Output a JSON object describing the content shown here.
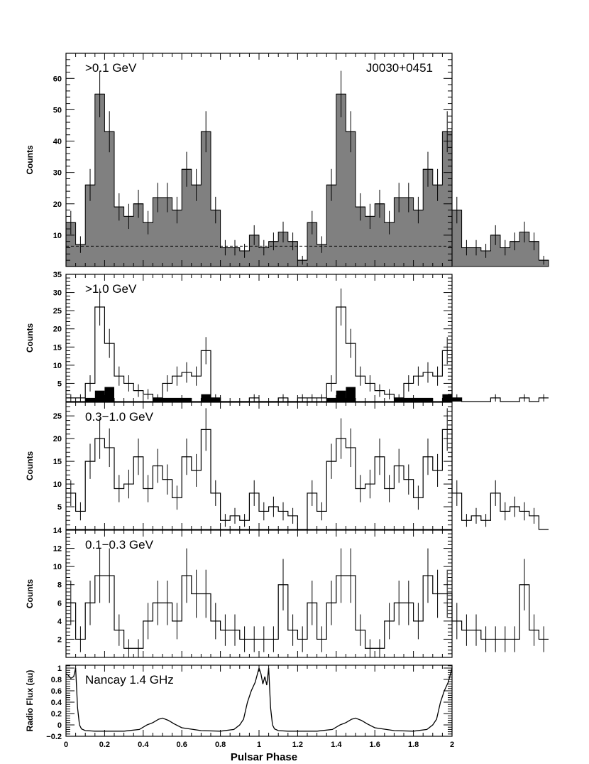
{
  "chart_data": [
    {
      "type": "bar",
      "title": ">0.1 GeV",
      "source_label": "J0030+0451",
      "ylabel": "Counts",
      "ylim": [
        0,
        68
      ],
      "yticks": [
        10,
        20,
        30,
        40,
        50,
        60
      ],
      "xlim": [
        0,
        2
      ],
      "bin_width": 0.05,
      "values": [
        14,
        7,
        26,
        55,
        43,
        19,
        16,
        20,
        14,
        22,
        22,
        18,
        31,
        26,
        43,
        18,
        6,
        6,
        5,
        10,
        6,
        8,
        11,
        8,
        2,
        14,
        7,
        26,
        55,
        43,
        19,
        16,
        20,
        14,
        22,
        22,
        18,
        31,
        26,
        43,
        18,
        6,
        6,
        5,
        10,
        6,
        8,
        11,
        8,
        2
      ],
      "background_level": 6.5,
      "fill_color": "#808080",
      "background_line": "dashed"
    },
    {
      "type": "bar",
      "title": ">1.0 GeV",
      "ylabel": "Counts",
      "ylim": [
        0,
        35
      ],
      "yticks": [
        5,
        10,
        15,
        20,
        25,
        30,
        35
      ],
      "xlim": [
        0,
        2
      ],
      "bin_width": 0.05,
      "series": [
        {
          "values": [
            1,
            1,
            5,
            26,
            16,
            7,
            5,
            3,
            2,
            1,
            5,
            7,
            8,
            7,
            14,
            1,
            0,
            0,
            0,
            1,
            0,
            0,
            1,
            0,
            1,
            1,
            1,
            5,
            26,
            16,
            7,
            5,
            3,
            2,
            1,
            5,
            7,
            8,
            7,
            14,
            1,
            0,
            0,
            0,
            1,
            0,
            0,
            1,
            0,
            1
          ],
          "style": "outline"
        },
        {
          "values": [
            0,
            0,
            1,
            3,
            4,
            0,
            0,
            0,
            0,
            1,
            1,
            1,
            1,
            0,
            2,
            1,
            0,
            0,
            0,
            0,
            0,
            0,
            0,
            0,
            0,
            0,
            0,
            1,
            3,
            4,
            0,
            0,
            0,
            0,
            1,
            1,
            1,
            1,
            0,
            2,
            1,
            0,
            0,
            0,
            0,
            0,
            0,
            0,
            0,
            0
          ],
          "style": "filled-black"
        }
      ]
    },
    {
      "type": "bar",
      "title": "0.3−1.0 GeV",
      "ylabel": "Counts",
      "ylim": [
        0,
        28
      ],
      "yticks": [
        5,
        10,
        15,
        20,
        25
      ],
      "xlim": [
        0,
        2
      ],
      "bin_width": 0.05,
      "values": [
        8,
        4,
        15,
        20,
        18,
        9,
        10,
        16,
        9,
        14,
        11,
        7,
        16,
        13,
        22,
        8,
        2,
        3,
        2,
        8,
        4,
        5,
        4,
        3,
        0,
        8,
        4,
        15,
        20,
        18,
        9,
        10,
        16,
        9,
        14,
        11,
        7,
        16,
        13,
        22,
        8,
        2,
        3,
        2,
        8,
        4,
        5,
        4,
        3,
        0
      ]
    },
    {
      "type": "bar",
      "title": "0.1−0.3 GeV",
      "ylabel": "Counts",
      "ylim": [
        0,
        14
      ],
      "yticks": [
        2,
        4,
        6,
        8,
        10,
        12,
        14
      ],
      "xlim": [
        0,
        2
      ],
      "bin_width": 0.05,
      "values": [
        6,
        2,
        6,
        9,
        9,
        3,
        1,
        1,
        4,
        6,
        6,
        4,
        9,
        7,
        7,
        4,
        3,
        3,
        2,
        2,
        2,
        2,
        8,
        3,
        2,
        6,
        2,
        6,
        9,
        9,
        3,
        1,
        1,
        4,
        6,
        6,
        4,
        9,
        7,
        7,
        4,
        3,
        3,
        2,
        2,
        2,
        2,
        8,
        3,
        2
      ]
    },
    {
      "type": "line",
      "title": "Nancay 1.4 GHz",
      "ylabel": "Radio Flux (au)",
      "xlabel": "Pulsar Phase",
      "ylim": [
        -0.2,
        1.05
      ],
      "yticks": [
        -0.2,
        0,
        0.2,
        0.4,
        0.6,
        0.8,
        1
      ],
      "ytick_labels": [
        "−0.2",
        "0",
        "0.2",
        "0.4",
        "0.6",
        "0.8",
        "1"
      ],
      "xlim": [
        0,
        2
      ],
      "xticks": [
        0,
        0.2,
        0.4,
        0.6,
        0.8,
        1,
        1.2,
        1.4,
        1.6,
        1.8,
        2
      ],
      "xtick_labels": [
        "0",
        "0.2",
        "0.4",
        "0.6",
        "0.8",
        "1",
        "1.2",
        "1.4",
        "1.6",
        "1.8",
        "2"
      ],
      "x": [
        0,
        0.01,
        0.025,
        0.04,
        0.05,
        0.06,
        0.07,
        0.08,
        0.1,
        0.15,
        0.2,
        0.3,
        0.38,
        0.42,
        0.45,
        0.48,
        0.5,
        0.53,
        0.56,
        0.6,
        0.7,
        0.8,
        0.87,
        0.9,
        0.92,
        0.94,
        0.96,
        0.98,
        1.0,
        1.01,
        1.02,
        1.03,
        1.04,
        1.05,
        1.06,
        1.07,
        1.08,
        1.1,
        1.15,
        1.2,
        1.3,
        1.38,
        1.42,
        1.45,
        1.48,
        1.5,
        1.53,
        1.56,
        1.6,
        1.7,
        1.8,
        1.87,
        1.9,
        1.92,
        1.94,
        1.96,
        1.98,
        2.0
      ],
      "y": [
        0.9,
        0.88,
        0.82,
        0.85,
        1.0,
        0.3,
        0.0,
        -0.07,
        -0.1,
        -0.11,
        -0.11,
        -0.11,
        -0.08,
        0.0,
        0.04,
        0.1,
        0.12,
        0.08,
        0.02,
        -0.05,
        -0.1,
        -0.11,
        -0.08,
        0.0,
        0.1,
        0.4,
        0.6,
        0.75,
        1.0,
        0.9,
        0.72,
        0.85,
        0.7,
        1.0,
        0.3,
        0.0,
        -0.07,
        -0.1,
        -0.11,
        -0.11,
        -0.11,
        -0.08,
        0.0,
        0.04,
        0.1,
        0.12,
        0.08,
        0.02,
        -0.05,
        -0.1,
        -0.11,
        -0.08,
        0.0,
        0.1,
        0.4,
        0.6,
        0.75,
        1.0
      ]
    }
  ]
}
